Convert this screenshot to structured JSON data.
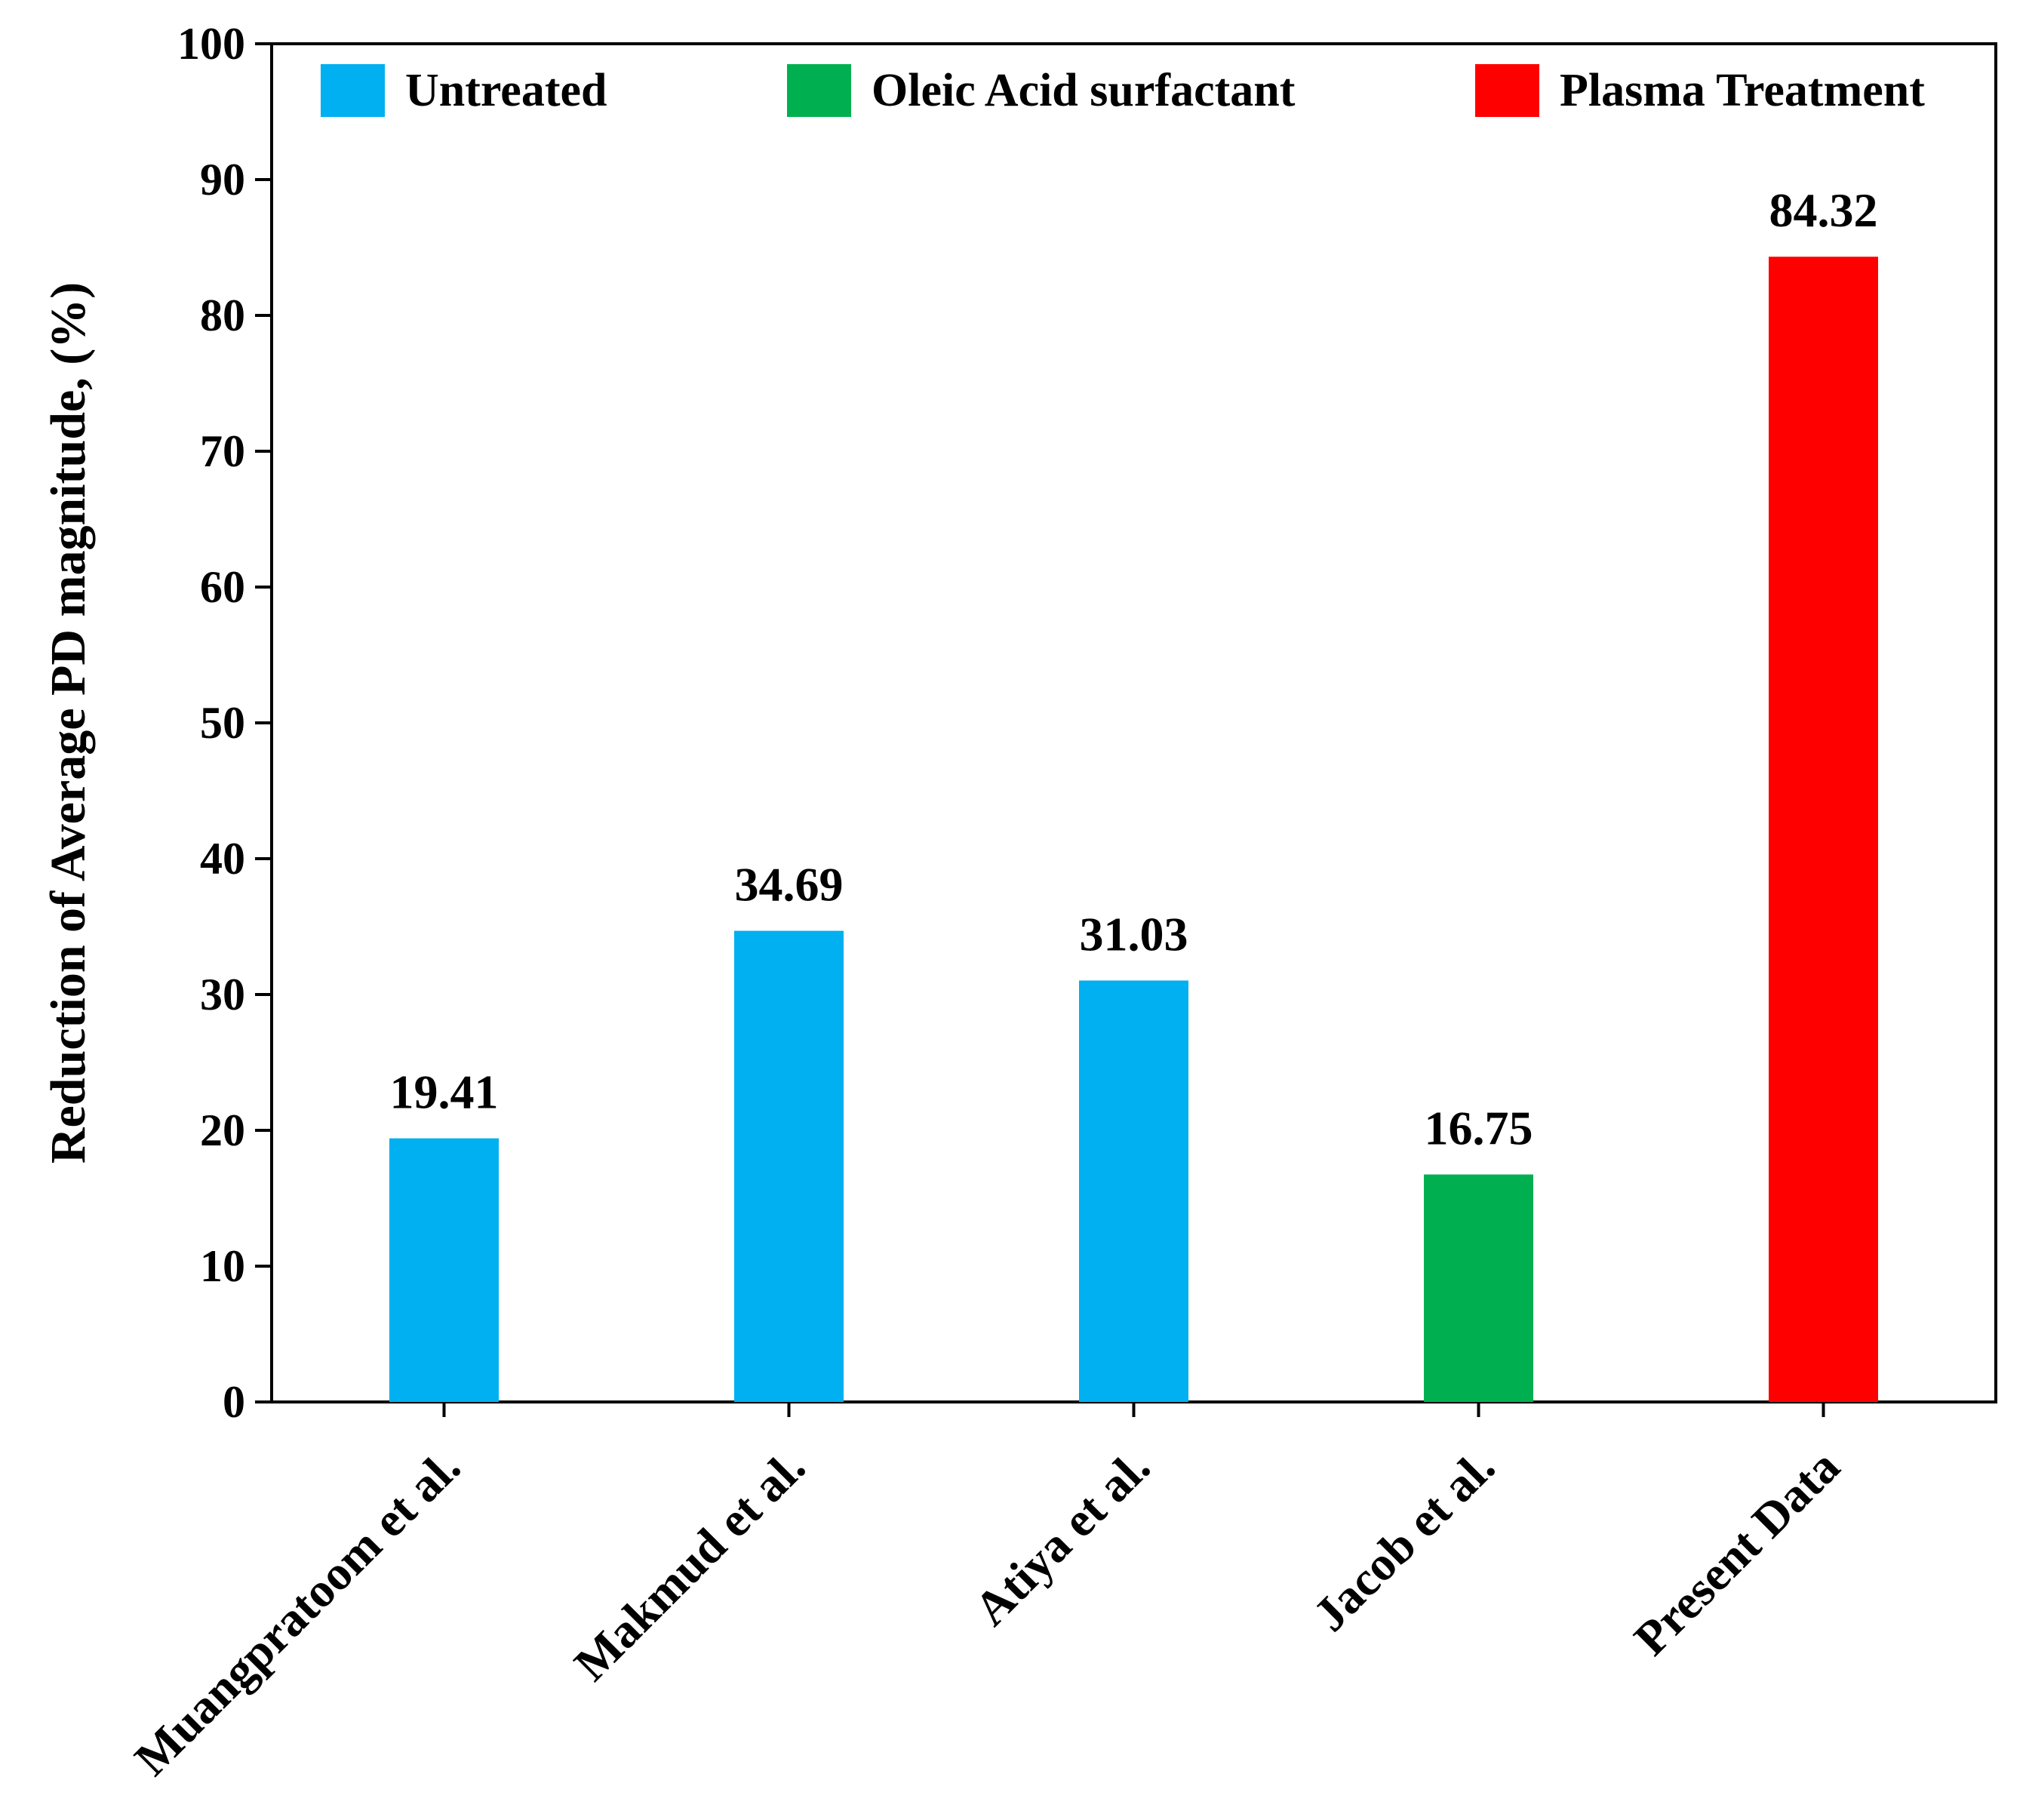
{
  "chart_data": {
    "type": "bar",
    "title": "",
    "xlabel": "",
    "ylabel": "Reduction of Average PD magnitude, (%)",
    "ylim": [
      0,
      100
    ],
    "yticks": [
      0,
      10,
      20,
      30,
      40,
      50,
      60,
      70,
      80,
      90,
      100
    ],
    "grid": false,
    "legend_position": "top",
    "categories": [
      "Muangpratoom et al.",
      "Makmud et al.",
      "Atiya et al.",
      "Jacob et al.",
      "Present Data"
    ],
    "values": [
      19.41,
      34.69,
      31.03,
      16.75,
      84.32
    ],
    "value_labels": [
      "19.41",
      "34.69",
      "31.03",
      "16.75",
      "84.32"
    ],
    "groups": [
      "Untreated",
      "Untreated",
      "Untreated",
      "Oleic Acid surfactant",
      "Plasma Treatment"
    ],
    "legend": [
      {
        "name": "Untreated",
        "color": "#00b0f0"
      },
      {
        "name": "Oleic Acid surfactant",
        "color": "#00b050"
      },
      {
        "name": "Plasma Treatment",
        "color": "#ff0000"
      }
    ]
  }
}
